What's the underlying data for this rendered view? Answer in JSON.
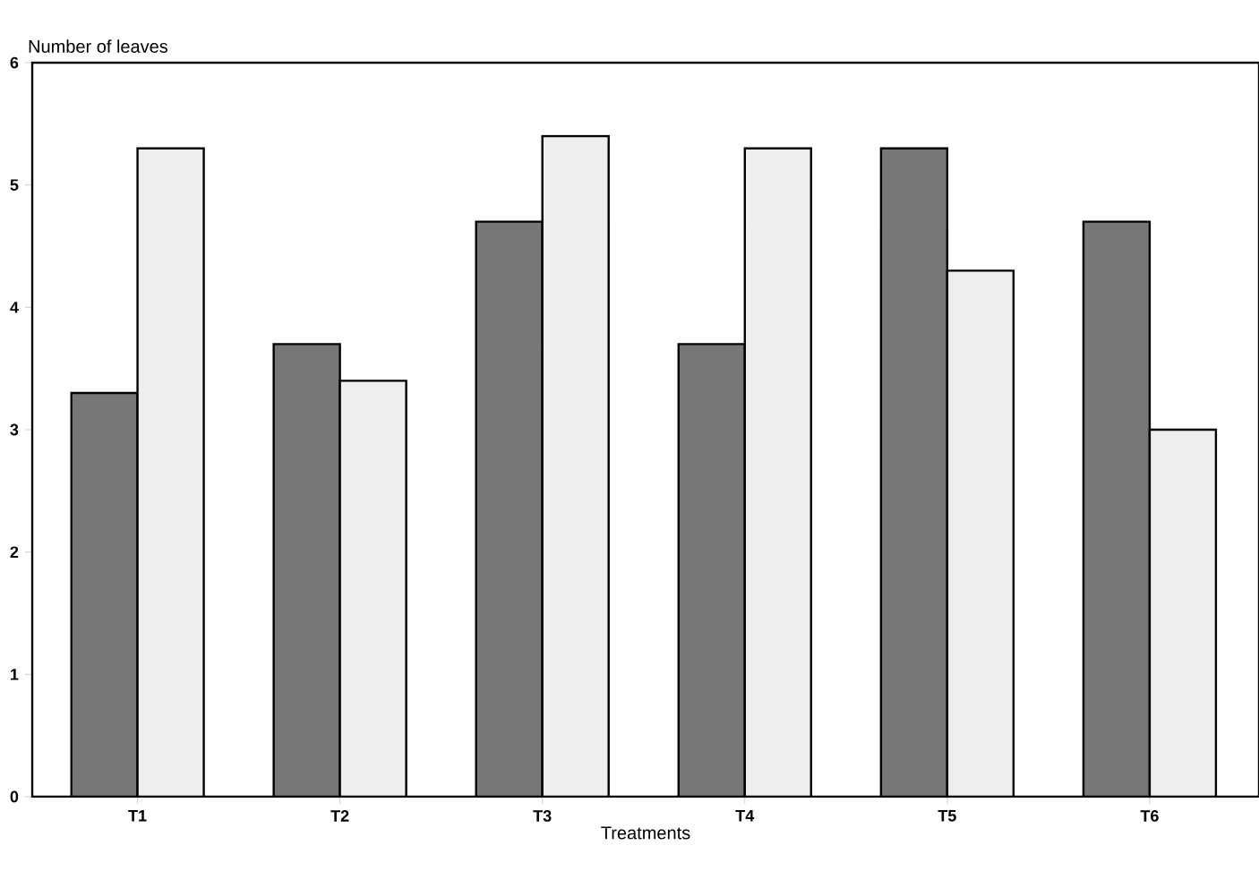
{
  "chart_data": {
    "type": "bar",
    "ylabel": "Number of leaves",
    "xlabel": "Treatments",
    "categories": [
      "T1",
      "T2",
      "T3",
      "T4",
      "T5",
      "T6"
    ],
    "series": [
      {
        "color": "#777777",
        "values": [
          3.3,
          3.7,
          4.7,
          3.7,
          5.3,
          4.7
        ]
      },
      {
        "color": "#eeeeee",
        "values": [
          5.3,
          3.4,
          5.4,
          5.3,
          4.3,
          3.0
        ]
      }
    ],
    "ylim": [
      0,
      6
    ],
    "yticks": [
      0,
      1,
      2,
      3,
      4,
      5,
      6
    ]
  }
}
